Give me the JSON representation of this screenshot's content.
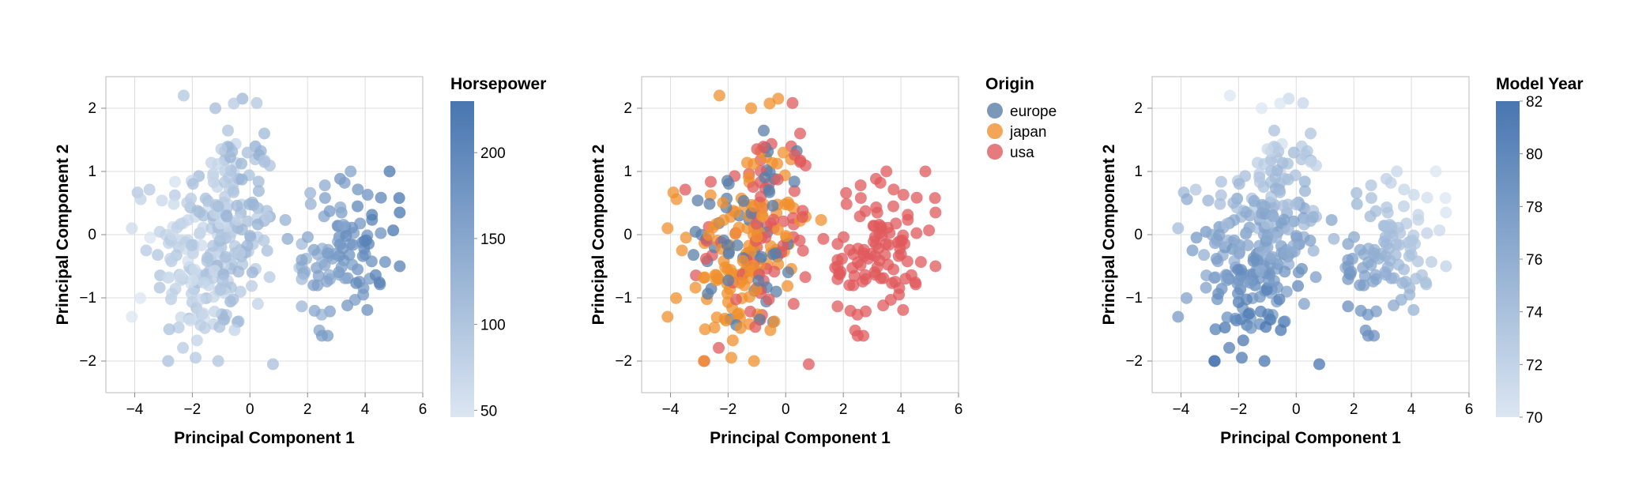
{
  "chart_data": [
    {
      "type": "scatter",
      "xlabel": "Principal Component 1",
      "ylabel": "Principal Component 2",
      "xlim": [
        -5,
        6
      ],
      "ylim": [
        -2.5,
        2.5
      ],
      "xticks": [
        -4,
        -2,
        0,
        2,
        4,
        6
      ],
      "yticks": [
        -2,
        -1,
        0,
        1,
        2
      ],
      "color_encoding": "continuous",
      "legend": {
        "title": "Horsepower",
        "min": 46,
        "max": 230,
        "ticks": [
          50,
          100,
          150,
          200
        ],
        "color_low": "#dbe6f2",
        "color_high": "#4876b0"
      },
      "clusters": [
        {
          "name": "left",
          "x_range": [
            -4.1,
            2.6
          ],
          "y_range": [
            -2.0,
            2.2
          ],
          "n": 260,
          "value_mean": 88,
          "value_sd": 16
        },
        {
          "name": "right",
          "x_range": [
            1.8,
            5.3
          ],
          "y_range": [
            -1.6,
            1.0
          ],
          "n": 100,
          "value_mean": 155,
          "value_sd": 28
        }
      ],
      "points_sample": [
        [
          -4.1,
          -1.3
        ],
        [
          -3.6,
          -0.25
        ],
        [
          -2.3,
          2.2
        ],
        [
          -1.1,
          -2.0
        ],
        [
          0.8,
          -2.05
        ],
        [
          5.2,
          0.35
        ],
        [
          5.2,
          -0.5
        ],
        [
          2.5,
          -1.6
        ],
        [
          -1.2,
          2.0
        ],
        [
          0.5,
          1.6
        ]
      ]
    },
    {
      "type": "scatter",
      "xlabel": "Principal Component 1",
      "ylabel": "Principal Component 2",
      "xlim": [
        -5,
        6
      ],
      "ylim": [
        -2.5,
        2.5
      ],
      "xticks": [
        -4,
        -2,
        0,
        2,
        4,
        6
      ],
      "yticks": [
        -2,
        -1,
        0,
        1,
        2
      ],
      "color_encoding": "categorical",
      "legend": {
        "title": "Origin",
        "entries": [
          {
            "label": "europe",
            "color": "#5b7ea8"
          },
          {
            "label": "japan",
            "color": "#f0902d"
          },
          {
            "label": "usa",
            "color": "#e05a5c"
          }
        ]
      },
      "clusters": [
        {
          "name": "europe",
          "x_range": [
            -4.1,
            1.0
          ],
          "y_range": [
            -1.4,
            2.2
          ],
          "n": 70
        },
        {
          "name": "japan",
          "x_range": [
            -3.3,
            0.5
          ],
          "y_range": [
            -1.4,
            2.0
          ],
          "n": 79
        },
        {
          "name": "usa",
          "x_range": [
            -1.5,
            5.3
          ],
          "y_range": [
            -2.05,
            1.6
          ],
          "n": 245
        }
      ],
      "points_sample": [
        [
          -4.1,
          -1.3
        ],
        [
          -2.3,
          2.2
        ],
        [
          -1.1,
          -2.0
        ],
        [
          0.8,
          -2.05
        ],
        [
          5.2,
          0.35
        ],
        [
          5.2,
          -0.5
        ]
      ]
    },
    {
      "type": "scatter",
      "xlabel": "Principal Component 1",
      "ylabel": "Principal Component 2",
      "xlim": [
        -5,
        6
      ],
      "ylim": [
        -2.5,
        2.5
      ],
      "xticks": [
        -4,
        -2,
        0,
        2,
        4,
        6
      ],
      "yticks": [
        -2,
        -1,
        0,
        1,
        2
      ],
      "color_encoding": "continuous",
      "legend": {
        "title": "Model Year",
        "min": 70,
        "max": 82,
        "ticks": [
          70,
          72,
          74,
          76,
          78,
          80,
          82
        ],
        "color_low": "#dbe6f2",
        "color_high": "#4876b0"
      },
      "clusters": [
        {
          "name": "left",
          "x_range": [
            -4.1,
            2.6
          ],
          "y_range": [
            -2.0,
            2.2
          ],
          "n": 260,
          "value_rule": "later years lower-left, earlier years top"
        },
        {
          "name": "right",
          "x_range": [
            1.8,
            5.3
          ],
          "y_range": [
            -1.6,
            1.0
          ],
          "n": 100,
          "value_rule": "earlier years upper-right, later years lower-left"
        }
      ],
      "points_sample": [
        [
          -4.1,
          -1.3
        ],
        [
          -2.3,
          2.2
        ],
        [
          -1.1,
          -2.0
        ],
        [
          0.8,
          -2.05
        ],
        [
          5.2,
          0.35
        ],
        [
          5.2,
          -0.5
        ]
      ]
    }
  ]
}
